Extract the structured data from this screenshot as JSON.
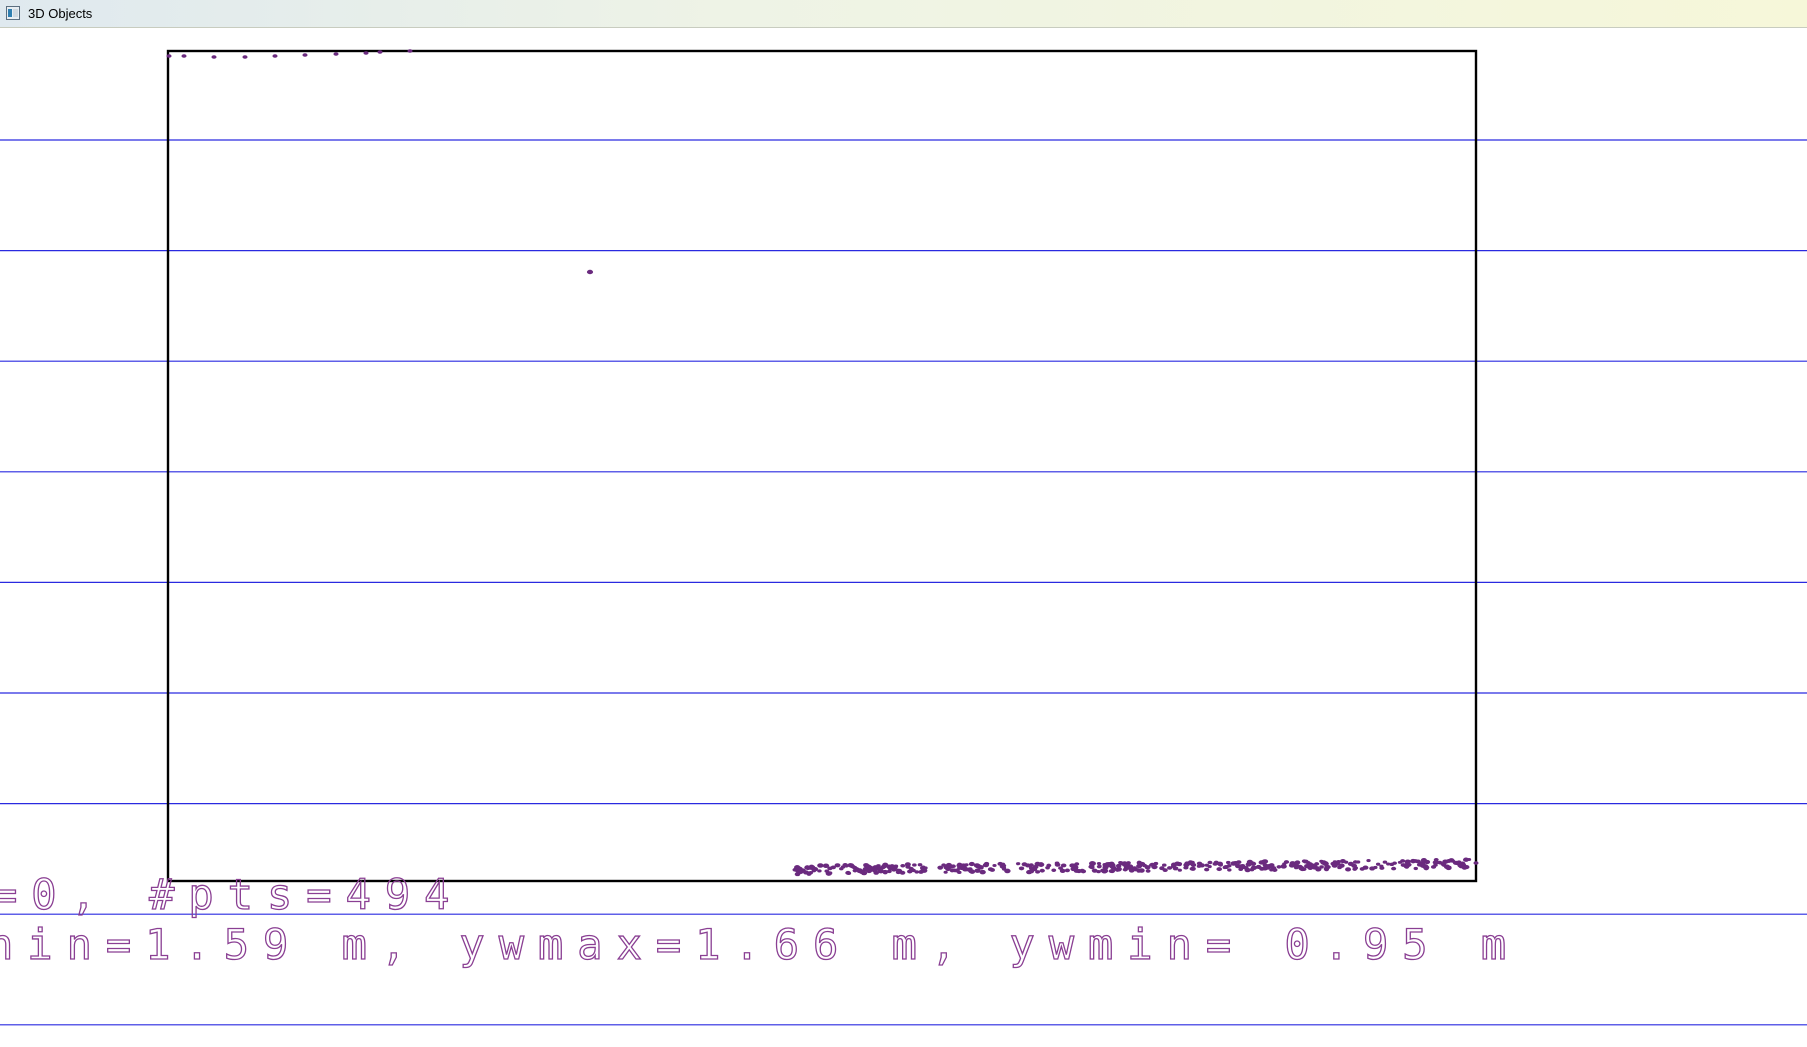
{
  "window": {
    "title": "3D Objects",
    "icon": "app-window-icon"
  },
  "colors": {
    "grid_line": "#2a2ae0",
    "frame": "#000000",
    "points": "#6a2a7e",
    "overlay_text": "#8a3f93"
  },
  "overlay": {
    "line1": "=0, #pts=494",
    "line2": "nin=1.59 m, ywmax=1.66 m, ywmin= 0.95 m"
  },
  "chart_data": {
    "type": "scatter",
    "point_count": 494,
    "x": [],
    "y_range_m": {
      "ywmax": 1.66,
      "ywmin": 0.95
    },
    "series": [
      {
        "name": "",
        "shape": "dots"
      }
    ]
  }
}
